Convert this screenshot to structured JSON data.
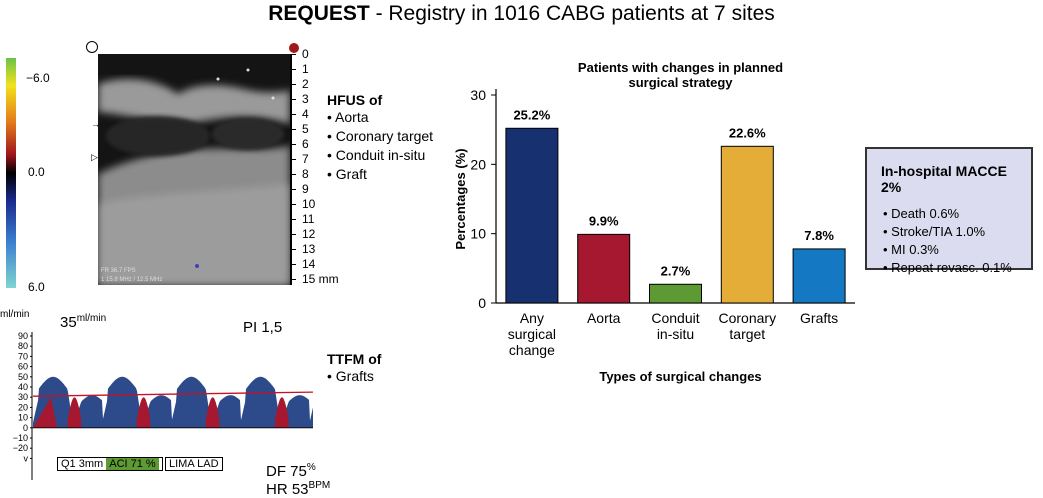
{
  "header": {
    "title_bold": "REQUEST",
    "title_rest": " - Registry in 1016 CABG patients at 7 sites"
  },
  "ultrasound": {
    "colorbar_labels": [
      "−6.0",
      "0.0",
      "6.0"
    ],
    "depth_ticks": [
      "0",
      "1",
      "2",
      "3",
      "4",
      "5",
      "6",
      "7",
      "8",
      "9",
      "10",
      "11",
      "12",
      "13",
      "14",
      "15 mm"
    ],
    "overlay_line1": "FR 36.7 FPS",
    "overlay_line2": "1 15.8 MHz / 12.5 MHz",
    "legend_title": "HFUS of",
    "legend_items": [
      "Aorta",
      "Coronary target",
      "Conduit in-situ",
      "Graft"
    ]
  },
  "flow": {
    "unit": "ml/min",
    "mean_value": "35",
    "mean_unit": "ml/min",
    "pi_label": "PI 1,5",
    "y_ticks": [
      "90",
      "80",
      "70",
      "60",
      "50",
      "40",
      "30",
      "20",
      "10",
      "0",
      "−10",
      "−20",
      "v"
    ],
    "probe_label": "Q1 3mm",
    "aci_label": "ACI 71 %",
    "graft_label": "LIMA LAD",
    "df_label": "DF 75",
    "df_unit": "%",
    "hr_label": "HR 53",
    "hr_unit": "BPM",
    "legend_title": "TTFM of",
    "legend_items": [
      "Grafts"
    ]
  },
  "chart_data": {
    "type": "bar",
    "title": "Patients with changes in planned surgical strategy",
    "title_lines": [
      "Patients with changes in planned",
      "surgical strategy"
    ],
    "xlabel": "Types of surgical changes",
    "ylabel": "Percentages (%)",
    "ylim": [
      0,
      30
    ],
    "yticks": [
      0,
      10,
      20,
      30
    ],
    "categories": [
      "Any surgical change",
      "Aorta",
      "Conduit in-situ",
      "Coronary target",
      "Grafts"
    ],
    "category_lines": [
      [
        "Any",
        "surgical",
        "change"
      ],
      [
        "Aorta"
      ],
      [
        "Conduit",
        "in-situ"
      ],
      [
        "Coronary",
        "target"
      ],
      [
        "Grafts"
      ]
    ],
    "values": [
      25.2,
      9.9,
      2.7,
      22.6,
      7.8
    ],
    "value_labels": [
      "25.2%",
      "9.9%",
      "2.7%",
      "22.6%",
      "7.8%"
    ],
    "colors": [
      "#163070",
      "#a5182f",
      "#5e9a34",
      "#e3ad37",
      "#1478c2"
    ],
    "grid": false
  },
  "macce": {
    "title": "In-hospital MACCE 2%",
    "items": [
      "Death 0.6%",
      "Stroke/TIA 1.0%",
      "MI 0.3%",
      "Repeat revasc. 0.1%"
    ]
  }
}
